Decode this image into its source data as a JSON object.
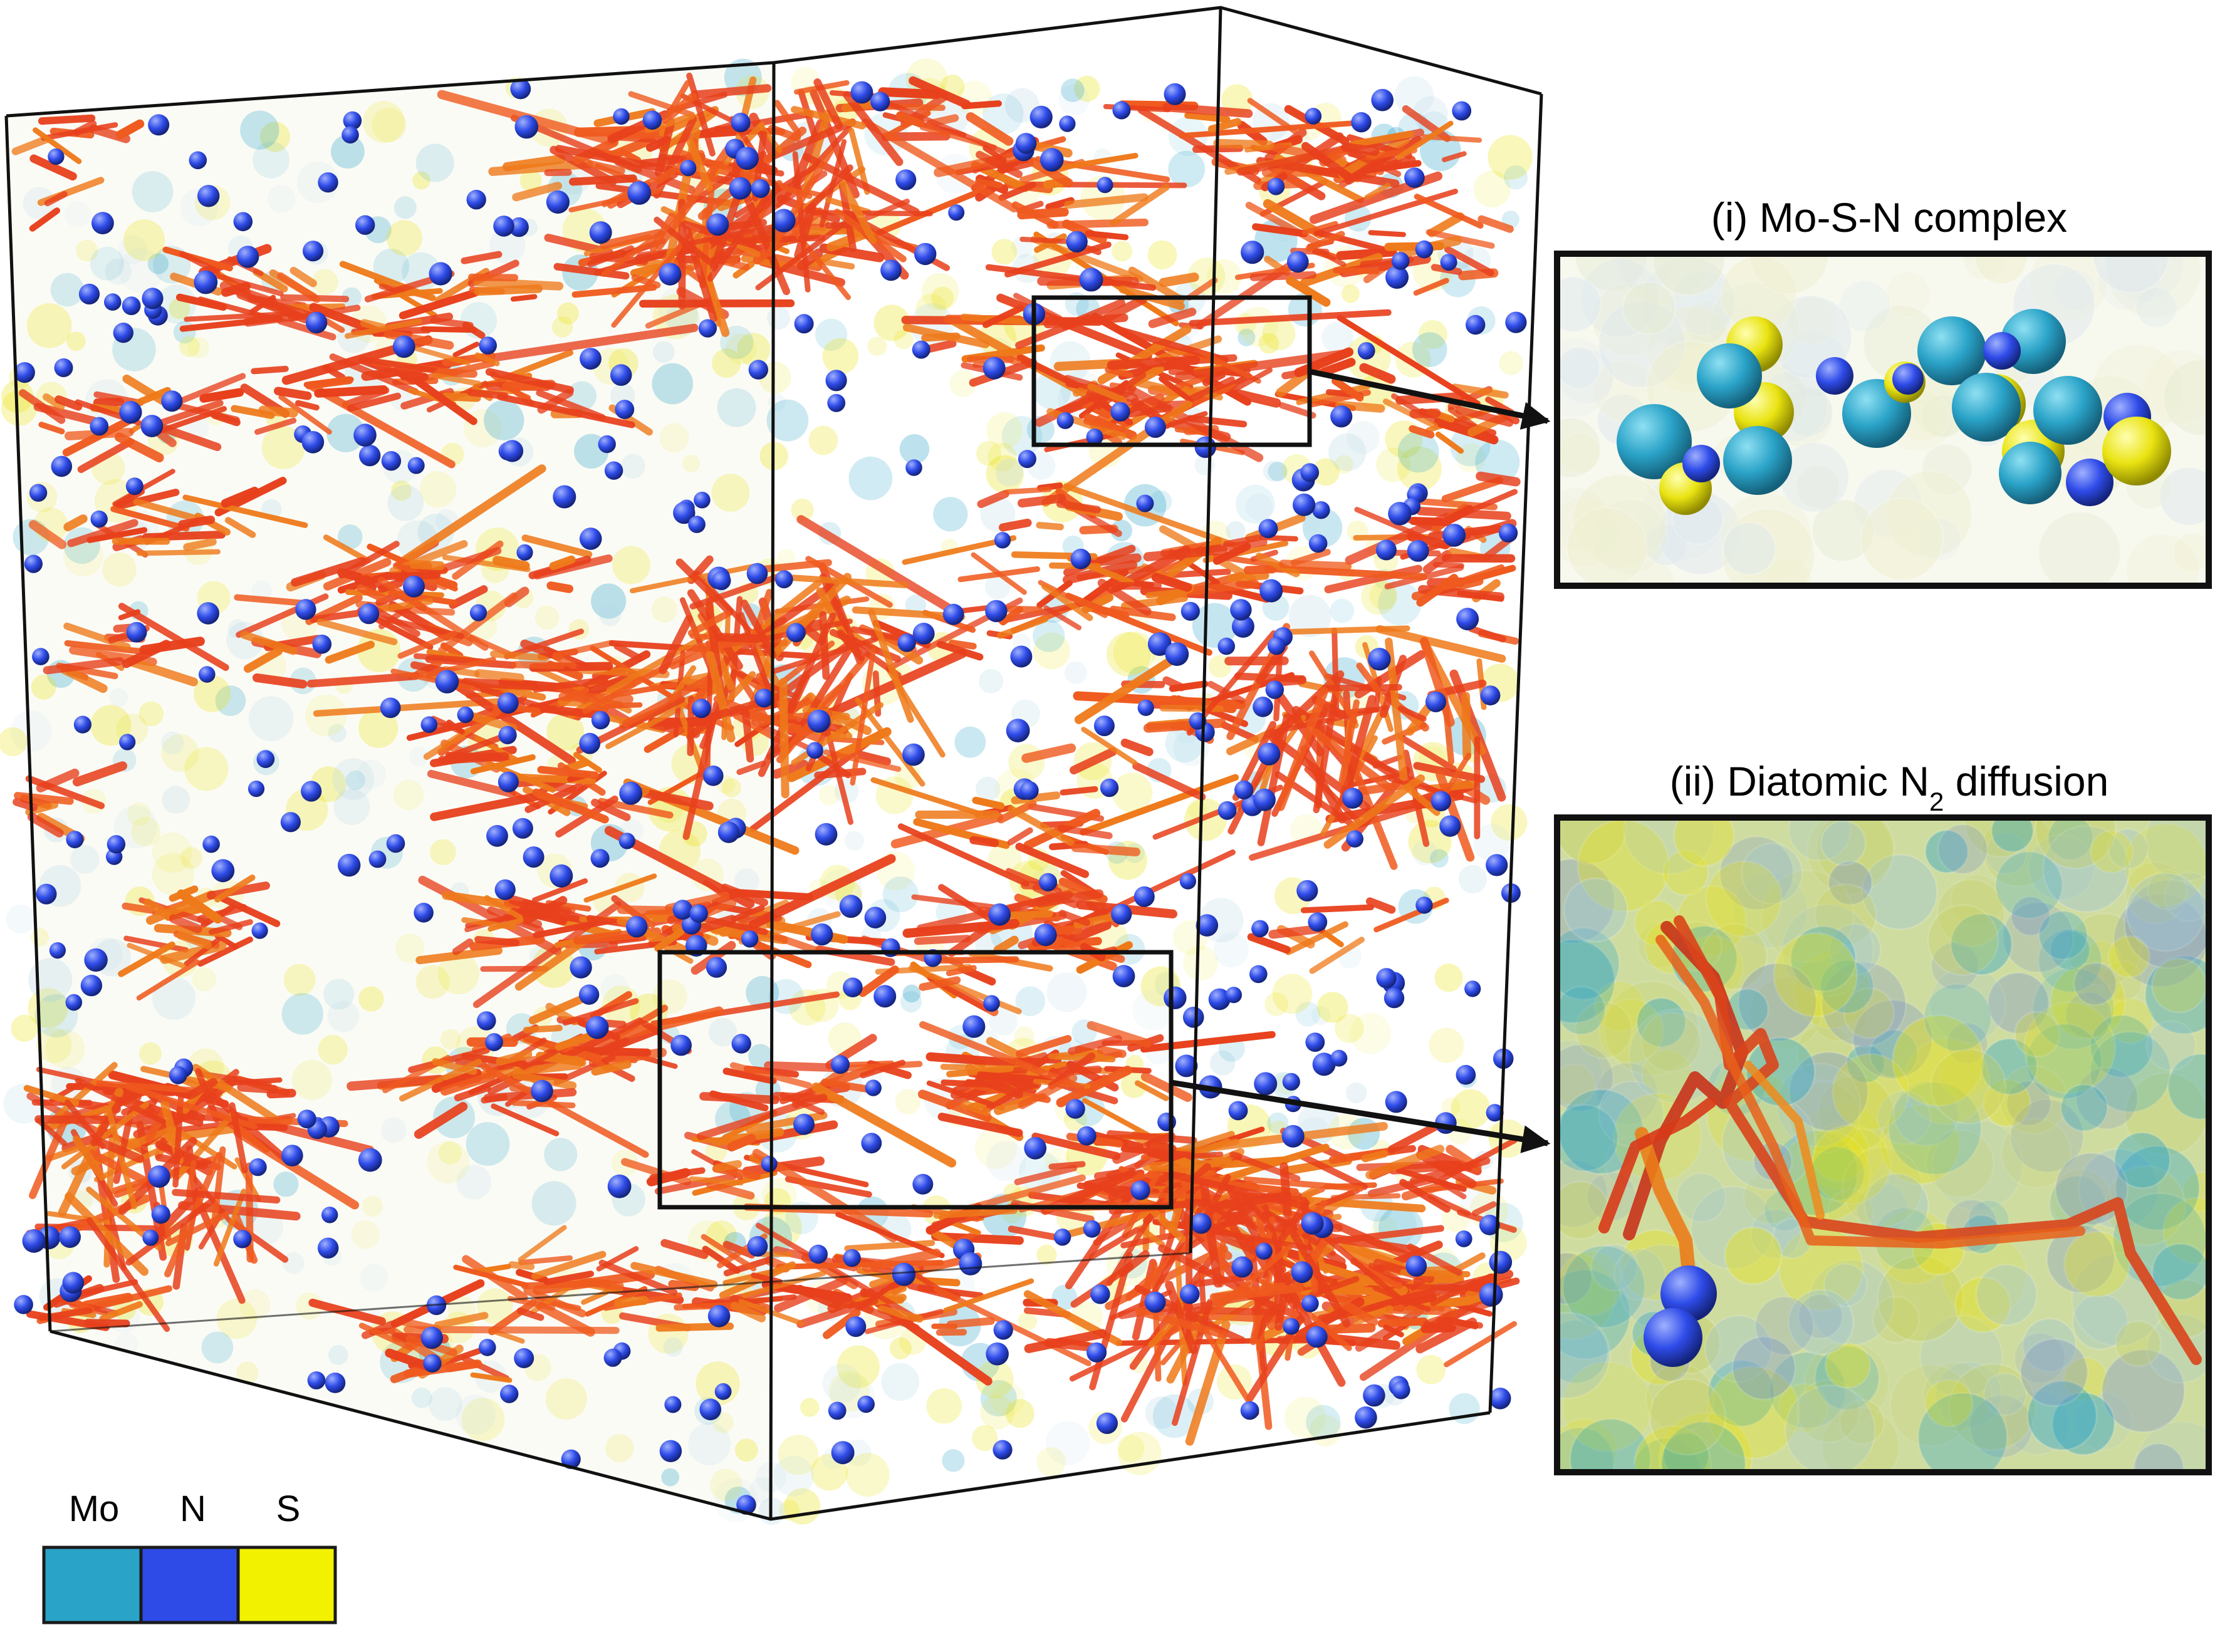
{
  "panel_i": {
    "title": "(i) Mo-S-N complex"
  },
  "panel_ii": {
    "title_prefix": "(ii) Diatomic N",
    "title_sub": "2",
    "title_suffix": " diffusion"
  },
  "legend": {
    "items": [
      {
        "label": "Mo",
        "color": "#2aa3c8"
      },
      {
        "label": "N",
        "color": "#2e4be8"
      },
      {
        "label": "S",
        "color": "#f2f200"
      }
    ]
  },
  "colors": {
    "trajectory": "#e8401c",
    "trajectory_orange": "#ef7a1a",
    "mo": "#2aa3c8",
    "n": "#2e4be8",
    "s": "#e9e312",
    "box_edge": "#111111"
  }
}
